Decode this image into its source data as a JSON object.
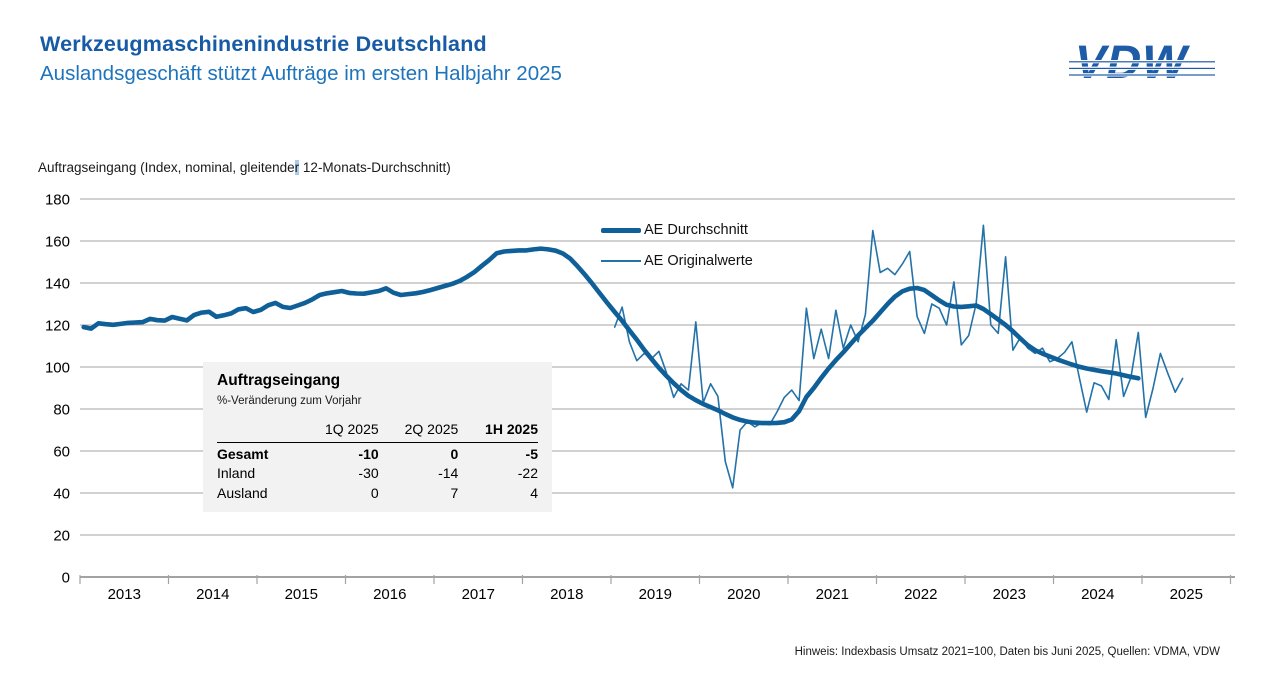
{
  "header": {
    "title": "Werkzeugmaschinenindustrie Deutschland",
    "subtitle": "Auslandsgeschäft stützt Aufträge im ersten Halbjahr 2025"
  },
  "logo": {
    "text": "VDW",
    "color": "#1E5CA8"
  },
  "chart": {
    "axis_label_pre": "Auftragseingang (Index, nominal, gleitende",
    "axis_label_hl": "r",
    "axis_label_post": " 12-Monats-Durchschnitt)",
    "highlight_color": "#A9CBEA"
  },
  "chart_data": {
    "type": "line",
    "title": "Auftragseingang (Index, nominal, gleitender 12-Monats-Durchschnitt)",
    "x_unit": "month",
    "x_start": "2013-01",
    "x_end": "2025-06",
    "year_labels": [
      "2013",
      "2014",
      "2015",
      "2016",
      "2017",
      "2018",
      "2019",
      "2020",
      "2021",
      "2022",
      "2023",
      "2024",
      "2025"
    ],
    "ylim": [
      0,
      180
    ],
    "y_ticks": [
      0,
      20,
      40,
      60,
      80,
      100,
      120,
      140,
      160,
      180
    ],
    "grid": "horizontal-gray",
    "legend_position": "inside-top-center",
    "grid_color": "#A3A3A3",
    "series": [
      {
        "name": "AE Durchschnitt",
        "style": "thick",
        "color": "#0F5F99",
        "start_month": "2013-01",
        "values": [
          119,
          118.3,
          120.8,
          120.4,
          120.1,
          120.5,
          121,
          121.2,
          121.4,
          122.9,
          122.3,
          122.1,
          123.8,
          123,
          122.2,
          124.8,
          125.9,
          126.3,
          123.9,
          124.6,
          125.5,
          127.5,
          128,
          126.2,
          127.2,
          129.4,
          130.5,
          128.6,
          128.1,
          129.3,
          130.5,
          132.2,
          134.3,
          135.1,
          135.6,
          136.2,
          135.3,
          135,
          134.9,
          135.5,
          136.2,
          137.5,
          135.4,
          134.3,
          134.7,
          135.1,
          135.7,
          136.6,
          137.6,
          138.6,
          139.6,
          141,
          143,
          145.3,
          148.2,
          151,
          154.2,
          155,
          155.3,
          155.5,
          155.5,
          156,
          156.4,
          156,
          155.4,
          154,
          151.5,
          147.8,
          143.8,
          139.5,
          135,
          130.5,
          126.2,
          122,
          117.5,
          113,
          108.2,
          103.8,
          99.6,
          95.8,
          92.3,
          89,
          86.3,
          84.2,
          82.4,
          80.9,
          79.4,
          77.6,
          76,
          74.8,
          74,
          73.5,
          73.3,
          73.3,
          73.4,
          73.7,
          75,
          79,
          85.7,
          90,
          94.8,
          99.3,
          103.3,
          107,
          111,
          115,
          118.5,
          122,
          126,
          130,
          133.5,
          136,
          137.3,
          137.6,
          136.6,
          134.2,
          131.7,
          129.6,
          128.8,
          128.6,
          128.9,
          129.3,
          127.6,
          125.2,
          122.6,
          120,
          117,
          113.6,
          110.4,
          108,
          106.4,
          105,
          103.6,
          102.4,
          101.2,
          100.1,
          99.3,
          98.6,
          98,
          97.5,
          96.9,
          96.1,
          95.3,
          94.6
        ]
      },
      {
        "name": "AE Originalwerte",
        "style": "thin",
        "color": "#2372A8",
        "start_month": "2019-01",
        "values": [
          119,
          128.5,
          112,
          103,
          106.5,
          104,
          107.5,
          97.5,
          85.5,
          92,
          89,
          121.5,
          83,
          92,
          86,
          55,
          42.5,
          70,
          74,
          71.5,
          73.5,
          72.5,
          78.5,
          85.5,
          89,
          84,
          128,
          104,
          118,
          104,
          127,
          109,
          120,
          112,
          125,
          165,
          145,
          147,
          144,
          149,
          155,
          124,
          116,
          130,
          128,
          120,
          140.5,
          110.5,
          115,
          130,
          167.5,
          120,
          116,
          152.5,
          108,
          114,
          109,
          106.5,
          109,
          102.5,
          104,
          107,
          112,
          95,
          78.5,
          92.5,
          91,
          84.5,
          113,
          86,
          95,
          116.5,
          76,
          90,
          106.5,
          97,
          88,
          94.5
        ]
      }
    ]
  },
  "inset_table": {
    "title": "Auftragseingang",
    "subtitle": "%-Veränderung zum Vorjahr",
    "columns": [
      "1Q 2025",
      "2Q 2025",
      "1H 2025"
    ],
    "rows": [
      {
        "label": "Gesamt",
        "values": [
          "-10",
          "0",
          "-5"
        ]
      },
      {
        "label": "Inland",
        "values": [
          "-30",
          "-14",
          "-22"
        ]
      },
      {
        "label": "Ausland",
        "values": [
          "0",
          "7",
          "4"
        ]
      }
    ]
  },
  "footer": {
    "note": "Hinweis: Indexbasis Umsatz 2021=100, Daten bis Juni 2025, Quellen: VDMA, VDW"
  },
  "colors": {
    "title_blue": "#175AA5",
    "subtitle_blue": "#1E74BC",
    "logo_blue": "#1E5CA8",
    "thick_line": "#0F5F99",
    "thin_line": "#2372A8",
    "grid_gray": "#A3A3A3",
    "table_bg": "#F2F2F2",
    "selection_highlight": "#A9CBEA"
  }
}
